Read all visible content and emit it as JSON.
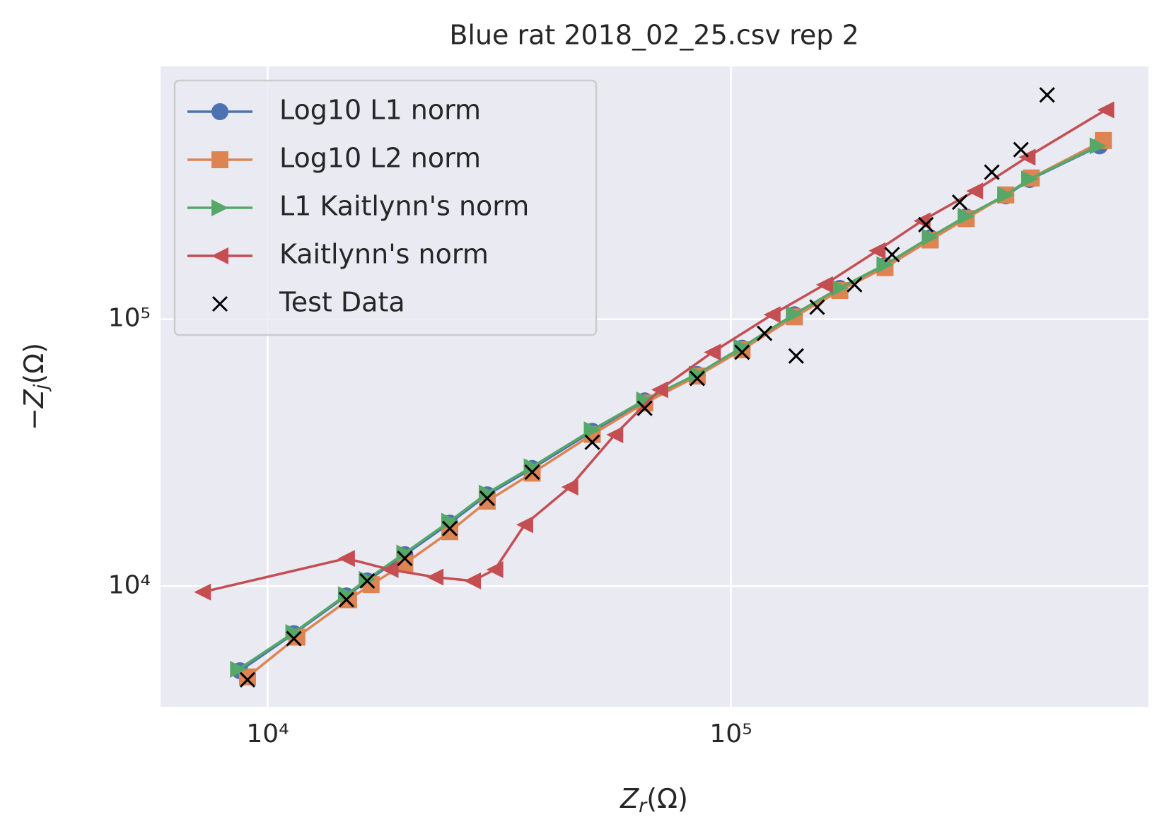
{
  "chart_data": {
    "type": "line",
    "title": "Blue rat 2018_02_25.csv rep 2",
    "xlabel": [
      "Z",
      "r",
      "(Ω)"
    ],
    "ylabel": [
      "−Z",
      "j",
      "(Ω)"
    ],
    "xscale": "log",
    "yscale": "log",
    "xlim": [
      5870,
      797000
    ],
    "ylim": [
      3532,
      884500
    ],
    "xticks": [
      {
        "value": 10000,
        "label": "10⁴"
      },
      {
        "value": 100000,
        "label": "10⁵"
      }
    ],
    "yticks": [
      {
        "value": 10000,
        "label": "10⁴"
      },
      {
        "value": 100000,
        "label": "10⁵"
      }
    ],
    "grid": true,
    "legend": "upper left",
    "series": [
      {
        "name": "Log10 L1 norm",
        "color": "#4c72b0",
        "marker": "o",
        "line": true,
        "x": [
          8710,
          11390,
          14790,
          16400,
          19770,
          24720,
          29780,
          37240,
          50200,
          65160,
          84580,
          105700,
          137100,
          171800,
          215100,
          269400,
          322000,
          392100,
          441500,
          625000
        ],
        "values": [
          4820,
          6640,
          9190,
          10460,
          13120,
          17220,
          21980,
          27590,
          38020,
          49430,
          62060,
          77850,
          103900,
          130400,
          158500,
          201700,
          241700,
          289500,
          333300,
          445700
        ]
      },
      {
        "name": "Log10 L2 norm",
        "color": "#dd8452",
        "marker": "s",
        "line": true,
        "x": [
          9044,
          11560,
          14950,
          16720,
          19770,
          24720,
          29780,
          37240,
          50200,
          65160,
          84580,
          105700,
          137100,
          171800,
          215100,
          269400,
          322000,
          392100,
          445000,
          636800
        ],
        "values": [
          4570,
          6440,
          8895,
          10130,
          12140,
          15990,
          20800,
          26500,
          37000,
          48500,
          61200,
          76800,
          102000,
          128000,
          156000,
          198000,
          238000,
          292000,
          338000,
          466700
        ]
      },
      {
        "name": "L1 Kaitlynn's norm",
        "color": "#55a868",
        "marker": ">",
        "line": true,
        "x": [
          8650,
          11390,
          14790,
          16400,
          19770,
          24720,
          29780,
          37240,
          50200,
          65160,
          84580,
          105700,
          137100,
          171800,
          215100,
          269400,
          322000,
          392100,
          441500,
          620500
        ],
        "values": [
          4880,
          6700,
          9300,
          10600,
          13300,
          17500,
          22300,
          28000,
          38500,
          49800,
          62300,
          78500,
          104500,
          131000,
          160000,
          203000,
          243000,
          292000,
          335000,
          445700
        ]
      },
      {
        "name": "Kaitlynn's norm",
        "color": "#c44e52",
        "marker": "<",
        "line": true,
        "x": [
          7230,
          14790,
          18370,
          22970,
          27670,
          30920,
          35880,
          44890,
          56130,
          70190,
          91170,
          122700,
          159200,
          206800,
          258500,
          335900,
          435800,
          644200
        ],
        "values": [
          9500,
          12700,
          11530,
          10810,
          10460,
          11530,
          16990,
          23500,
          36890,
          54420,
          75170,
          103900,
          134600,
          180400,
          233500,
          302000,
          404500,
          608100
        ]
      },
      {
        "name": "Test Data",
        "color": "#000000",
        "marker": "x",
        "line": false,
        "x": [
          9044,
          11390,
          14790,
          16400,
          19770,
          24720,
          29780,
          37240,
          50200,
          65160,
          84580,
          105700,
          118200,
          138300,
          153500,
          184900,
          222800,
          263600,
          311800,
          365800,
          422800,
          481500
        ],
        "values": [
          4457,
          6360,
          8895,
          10460,
          12700,
          16440,
          21330,
          26720,
          34590,
          46340,
          59980,
          75170,
          88510,
          72780,
          110900,
          134600,
          174500,
          226100,
          274200,
          355400,
          431700,
          691800
        ]
      }
    ]
  }
}
